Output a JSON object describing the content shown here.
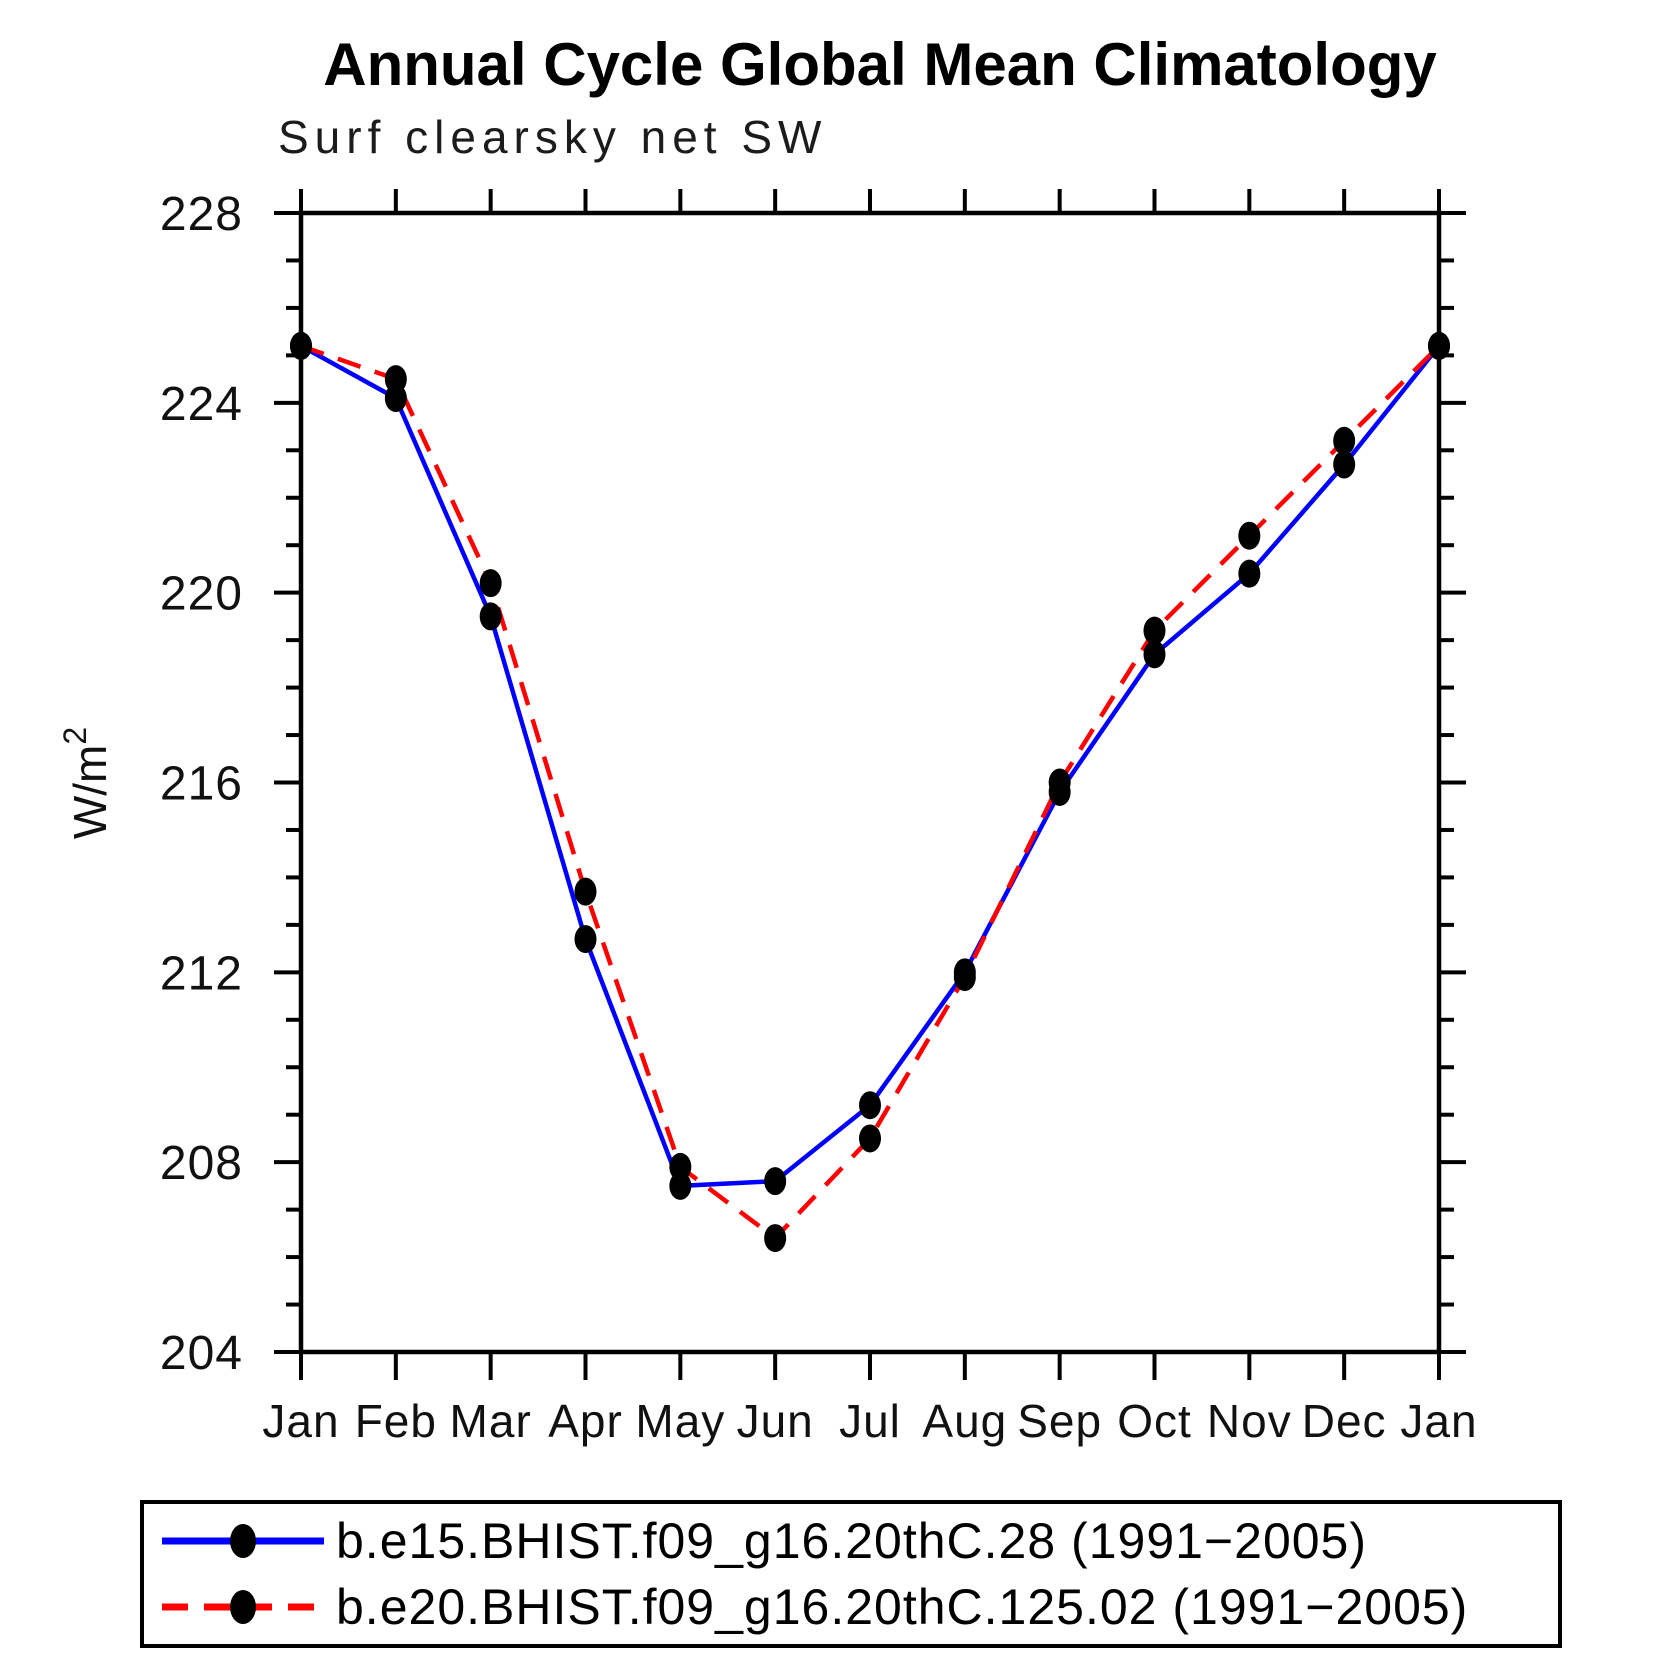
{
  "page": {
    "background": "#ffffff"
  },
  "chart_data": {
    "type": "line",
    "title": "Annual Cycle Global Mean Climatology",
    "subtitle": "Surf clearsky net SW",
    "ylabel": "W/m²",
    "ylabel_base": "W/m",
    "ylabel_sup": "2",
    "xlabel": "",
    "categories": [
      "Jan",
      "Feb",
      "Mar",
      "Apr",
      "May",
      "Jun",
      "Jul",
      "Aug",
      "Sep",
      "Oct",
      "Nov",
      "Dec",
      "Jan"
    ],
    "ylim": [
      204,
      228
    ],
    "yticks": [
      204,
      208,
      212,
      216,
      220,
      224,
      228
    ],
    "y_minor_step": 1,
    "grid": false,
    "legend_position": "bottom",
    "axis_color": "#000000",
    "marker_color": "#000000",
    "marker_shape": "filled-circle",
    "series": [
      {
        "name": "b.e15.BHIST.f09_g16.20thC.28 (1991−2005)",
        "color": "#0000ff",
        "line_style": "solid",
        "values": [
          225.2,
          224.1,
          219.5,
          212.7,
          207.5,
          207.6,
          209.2,
          212.0,
          215.8,
          218.7,
          220.4,
          222.7,
          225.2
        ]
      },
      {
        "name": "b.e20.BHIST.f09_g16.20thC.125.02 (1991−2005)",
        "color": "#ff0000",
        "line_style": "dashed",
        "values": [
          225.2,
          224.5,
          220.2,
          213.7,
          207.9,
          206.4,
          208.5,
          211.9,
          216.0,
          219.2,
          221.2,
          223.2,
          225.2
        ]
      }
    ]
  }
}
